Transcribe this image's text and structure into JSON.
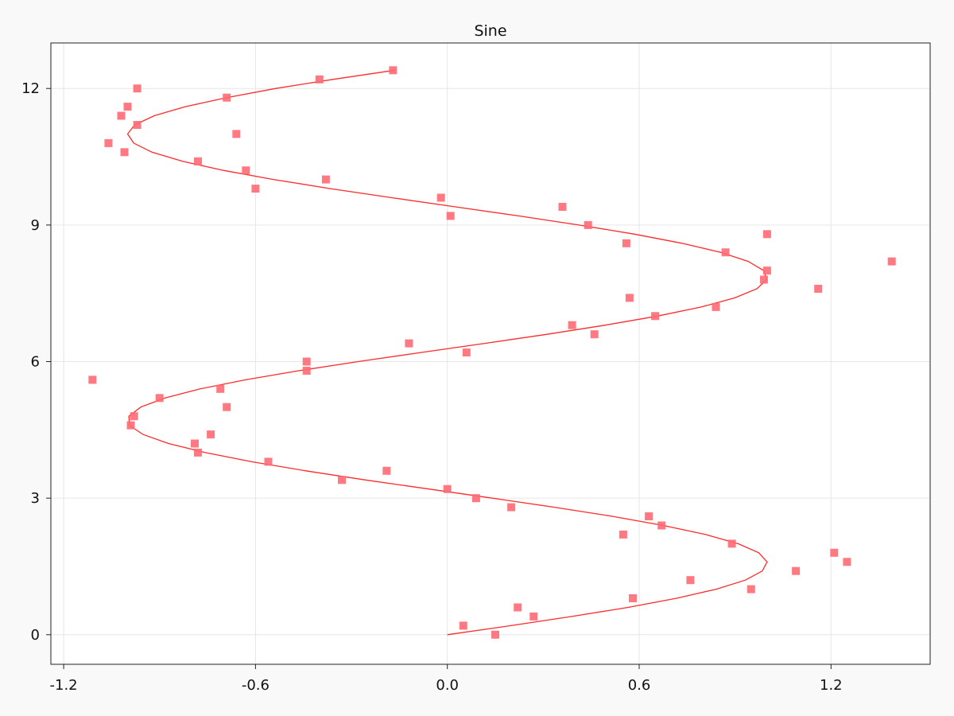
{
  "chart_data": {
    "type": "scatter",
    "title": "Sine",
    "xlabel": "",
    "ylabel": "",
    "xlim": [
      -1.24,
      1.51
    ],
    "ylim": [
      -0.65,
      13.0
    ],
    "grid": true,
    "x_ticks": [
      -1.2,
      -0.6,
      0.0,
      0.6,
      1.2
    ],
    "x_tick_labels": [
      "-1.2",
      "-0.6",
      "0.0",
      "0.6",
      "1.2"
    ],
    "y_ticks": [
      0,
      3,
      6,
      9,
      12
    ],
    "y_tick_labels": [
      "0",
      "3",
      "6",
      "9",
      "12"
    ],
    "colors": {
      "line": "#ff2a2a",
      "marker": "#ff6a75",
      "background": "#f9f9f9",
      "plot_bg": "#ffffff"
    },
    "series": [
      {
        "kind": "line",
        "points": [
          [
            0.0,
            0.0
          ],
          [
            0.199,
            0.2
          ],
          [
            0.389,
            0.4
          ],
          [
            0.565,
            0.6
          ],
          [
            0.717,
            0.8
          ],
          [
            0.841,
            1.0
          ],
          [
            0.932,
            1.2
          ],
          [
            0.985,
            1.4
          ],
          [
            1.0,
            1.6
          ],
          [
            0.974,
            1.8
          ],
          [
            0.909,
            2.0
          ],
          [
            0.808,
            2.2
          ],
          [
            0.675,
            2.4
          ],
          [
            0.516,
            2.6
          ],
          [
            0.335,
            2.8
          ],
          [
            0.141,
            3.0
          ],
          [
            -0.058,
            3.2
          ],
          [
            -0.256,
            3.4
          ],
          [
            -0.443,
            3.6
          ],
          [
            -0.612,
            3.8
          ],
          [
            -0.757,
            4.0
          ],
          [
            -0.872,
            4.2
          ],
          [
            -0.952,
            4.4
          ],
          [
            -0.994,
            4.6
          ],
          [
            -0.996,
            4.8
          ],
          [
            -0.959,
            5.0
          ],
          [
            -0.883,
            5.2
          ],
          [
            -0.773,
            5.4
          ],
          [
            -0.631,
            5.6
          ],
          [
            -0.465,
            5.8
          ],
          [
            -0.279,
            6.0
          ],
          [
            -0.083,
            6.2
          ],
          [
            0.117,
            6.4
          ],
          [
            0.312,
            6.6
          ],
          [
            0.494,
            6.8
          ],
          [
            0.657,
            7.0
          ],
          [
            0.794,
            7.2
          ],
          [
            0.899,
            7.4
          ],
          [
            0.968,
            7.6
          ],
          [
            0.999,
            7.8
          ],
          [
            0.989,
            8.0
          ],
          [
            0.941,
            8.2
          ],
          [
            0.855,
            8.4
          ],
          [
            0.734,
            8.6
          ],
          [
            0.585,
            8.8
          ],
          [
            0.412,
            9.0
          ],
          [
            0.223,
            9.2
          ],
          [
            0.025,
            9.4
          ],
          [
            -0.174,
            9.6
          ],
          [
            -0.366,
            9.8
          ],
          [
            -0.544,
            10.0
          ],
          [
            -0.7,
            10.2
          ],
          [
            -0.828,
            10.4
          ],
          [
            -0.924,
            10.6
          ],
          [
            -0.981,
            10.8
          ],
          [
            -1.0,
            11.0
          ],
          [
            -0.978,
            11.2
          ],
          [
            -0.917,
            11.4
          ],
          [
            -0.82,
            11.6
          ],
          [
            -0.69,
            11.8
          ],
          [
            -0.537,
            12.0
          ],
          [
            -0.358,
            12.2
          ],
          [
            -0.165,
            12.4
          ]
        ]
      },
      {
        "kind": "scatter",
        "marker": "square",
        "points": [
          [
            0.15,
            0.0
          ],
          [
            0.05,
            0.2
          ],
          [
            0.27,
            0.4
          ],
          [
            0.22,
            0.6
          ],
          [
            0.58,
            0.8
          ],
          [
            0.95,
            1.0
          ],
          [
            0.76,
            1.2
          ],
          [
            1.09,
            1.4
          ],
          [
            1.25,
            1.6
          ],
          [
            1.21,
            1.8
          ],
          [
            0.89,
            2.0
          ],
          [
            0.55,
            2.2
          ],
          [
            0.67,
            2.4
          ],
          [
            0.63,
            2.6
          ],
          [
            0.2,
            2.8
          ],
          [
            0.09,
            3.0
          ],
          [
            0.0,
            3.2
          ],
          [
            -0.33,
            3.4
          ],
          [
            -0.19,
            3.6
          ],
          [
            -0.56,
            3.8
          ],
          [
            -0.78,
            4.0
          ],
          [
            -0.79,
            4.2
          ],
          [
            -0.74,
            4.4
          ],
          [
            -0.99,
            4.6
          ],
          [
            -0.98,
            4.8
          ],
          [
            -0.69,
            5.0
          ],
          [
            -0.9,
            5.2
          ],
          [
            -0.71,
            5.4
          ],
          [
            -1.11,
            5.6
          ],
          [
            -0.44,
            5.8
          ],
          [
            -0.44,
            6.0
          ],
          [
            0.06,
            6.2
          ],
          [
            -0.12,
            6.4
          ],
          [
            0.46,
            6.6
          ],
          [
            0.39,
            6.8
          ],
          [
            0.65,
            7.0
          ],
          [
            0.84,
            7.2
          ],
          [
            0.57,
            7.4
          ],
          [
            1.16,
            7.6
          ],
          [
            0.99,
            7.8
          ],
          [
            1.0,
            8.0
          ],
          [
            1.39,
            8.2
          ],
          [
            0.87,
            8.4
          ],
          [
            0.56,
            8.6
          ],
          [
            1.0,
            8.8
          ],
          [
            0.44,
            9.0
          ],
          [
            0.01,
            9.2
          ],
          [
            0.36,
            9.4
          ],
          [
            -0.02,
            9.6
          ],
          [
            -0.6,
            9.8
          ],
          [
            -0.38,
            10.0
          ],
          [
            -0.63,
            10.2
          ],
          [
            -0.78,
            10.4
          ],
          [
            -1.01,
            10.6
          ],
          [
            -1.06,
            10.8
          ],
          [
            -0.66,
            11.0
          ],
          [
            -0.97,
            11.2
          ],
          [
            -1.02,
            11.4
          ],
          [
            -1.0,
            11.6
          ],
          [
            -0.69,
            11.8
          ],
          [
            -0.97,
            12.0
          ],
          [
            -0.4,
            12.2
          ],
          [
            -0.17,
            12.4
          ]
        ]
      }
    ]
  }
}
